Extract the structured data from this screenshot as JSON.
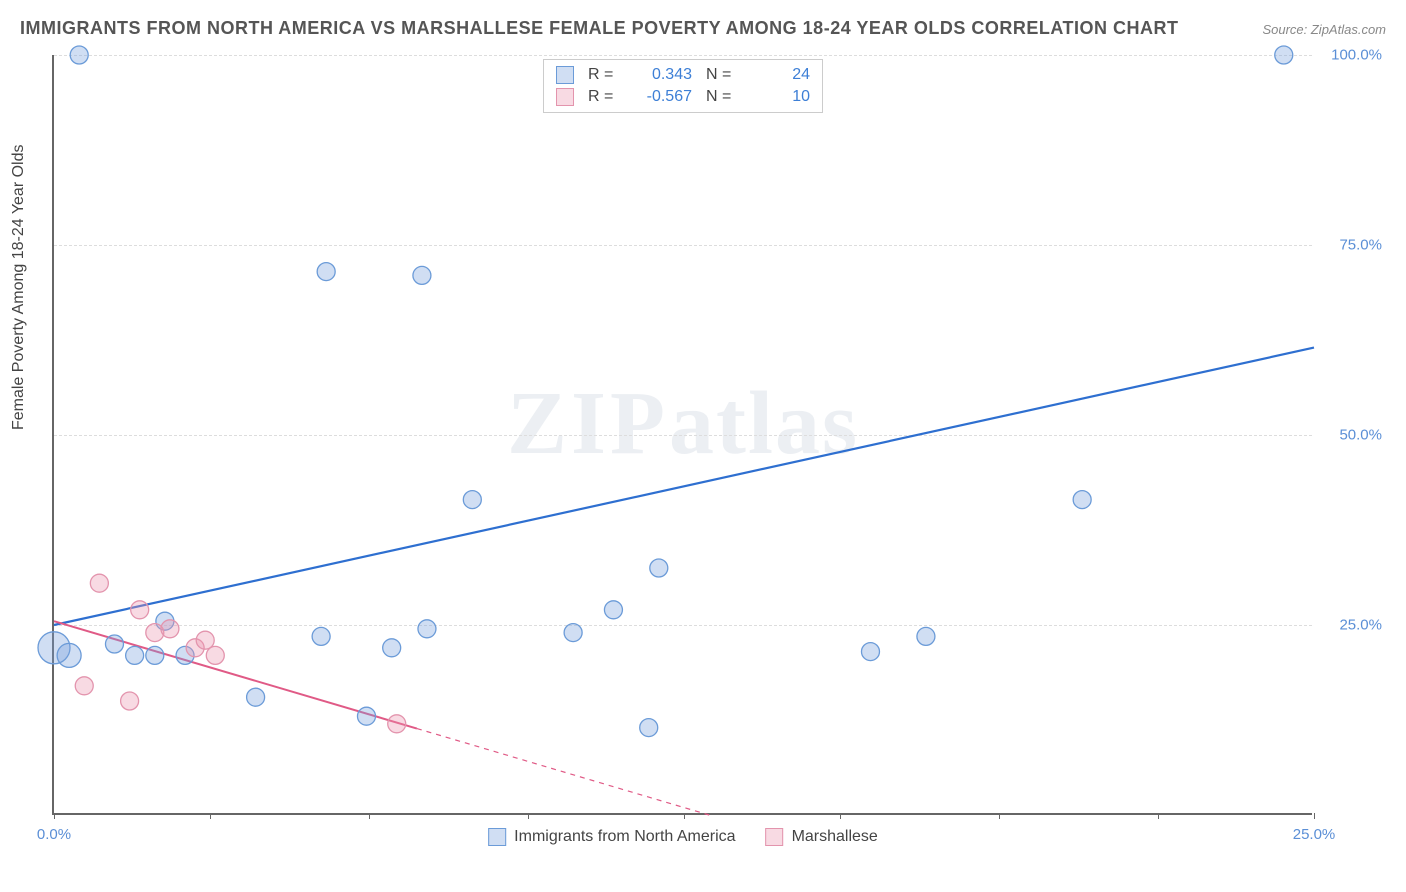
{
  "title": "IMMIGRANTS FROM NORTH AMERICA VS MARSHALLESE FEMALE POVERTY AMONG 18-24 YEAR OLDS CORRELATION CHART",
  "source": "Source: ZipAtlas.com",
  "ylabel": "Female Poverty Among 18-24 Year Olds",
  "watermark_zip": "ZIP",
  "watermark_atlas": "atlas",
  "chart": {
    "type": "scatter-with-regression",
    "xlim": [
      0,
      25
    ],
    "ylim": [
      0,
      100
    ],
    "xtick_positions": [
      0,
      3.1,
      6.25,
      9.4,
      12.5,
      15.6,
      18.75,
      21.9,
      25
    ],
    "xtick_labels_shown": {
      "0": "0.0%",
      "25": "25.0%"
    },
    "ytick_positions": [
      25,
      50,
      75,
      100
    ],
    "ytick_labels": {
      "25": "25.0%",
      "50": "50.0%",
      "75": "75.0%",
      "100": "100.0%"
    },
    "plot_bg": "#ffffff",
    "grid_color": "#dddddd",
    "axis_color": "#666666"
  },
  "series": [
    {
      "id": "immigrants",
      "legend_label": "Immigrants from North America",
      "color_fill": "rgba(120,160,220,0.35)",
      "color_stroke": "#6b9bd8",
      "line_color": "#2e6fd0",
      "line_width": 2.2,
      "R": "0.343",
      "N": "24",
      "points": [
        {
          "x": 0.0,
          "y": 22.0,
          "r": 16
        },
        {
          "x": 0.3,
          "y": 21.0,
          "r": 12
        },
        {
          "x": 0.5,
          "y": 100.0,
          "r": 9
        },
        {
          "x": 1.2,
          "y": 22.5,
          "r": 9
        },
        {
          "x": 1.6,
          "y": 21.0,
          "r": 9
        },
        {
          "x": 2.0,
          "y": 21.0,
          "r": 9
        },
        {
          "x": 2.2,
          "y": 25.5,
          "r": 9
        },
        {
          "x": 2.6,
          "y": 21.0,
          "r": 9
        },
        {
          "x": 4.0,
          "y": 15.5,
          "r": 9
        },
        {
          "x": 5.3,
          "y": 23.5,
          "r": 9
        },
        {
          "x": 5.4,
          "y": 71.5,
          "r": 9
        },
        {
          "x": 6.2,
          "y": 13.0,
          "r": 9
        },
        {
          "x": 6.7,
          "y": 22.0,
          "r": 9
        },
        {
          "x": 7.3,
          "y": 71.0,
          "r": 9
        },
        {
          "x": 7.4,
          "y": 24.5,
          "r": 9
        },
        {
          "x": 8.3,
          "y": 41.5,
          "r": 9
        },
        {
          "x": 10.3,
          "y": 24.0,
          "r": 9
        },
        {
          "x": 11.1,
          "y": 27.0,
          "r": 9
        },
        {
          "x": 11.8,
          "y": 11.5,
          "r": 9
        },
        {
          "x": 12.0,
          "y": 32.5,
          "r": 9
        },
        {
          "x": 16.2,
          "y": 21.5,
          "r": 9
        },
        {
          "x": 17.3,
          "y": 23.5,
          "r": 9
        },
        {
          "x": 20.4,
          "y": 41.5,
          "r": 9
        },
        {
          "x": 24.4,
          "y": 100.0,
          "r": 9
        }
      ],
      "trend": {
        "x1": 0,
        "y1": 25.0,
        "x2": 25,
        "y2": 61.5,
        "solid_until_x": 25
      }
    },
    {
      "id": "marshallese",
      "legend_label": "Marshallese",
      "color_fill": "rgba(235,150,175,0.35)",
      "color_stroke": "#e394ad",
      "line_color": "#e05a86",
      "line_width": 2,
      "R": "-0.567",
      "N": "10",
      "points": [
        {
          "x": 0.6,
          "y": 17.0,
          "r": 9
        },
        {
          "x": 0.9,
          "y": 30.5,
          "r": 9
        },
        {
          "x": 1.5,
          "y": 15.0,
          "r": 9
        },
        {
          "x": 1.7,
          "y": 27.0,
          "r": 9
        },
        {
          "x": 2.0,
          "y": 24.0,
          "r": 9
        },
        {
          "x": 2.3,
          "y": 24.5,
          "r": 9
        },
        {
          "x": 2.8,
          "y": 22.0,
          "r": 9
        },
        {
          "x": 3.0,
          "y": 23.0,
          "r": 9
        },
        {
          "x": 3.2,
          "y": 21.0,
          "r": 9
        },
        {
          "x": 6.8,
          "y": 12.0,
          "r": 9
        }
      ],
      "trend": {
        "x1": 0,
        "y1": 25.5,
        "x2": 13.0,
        "y2": 0,
        "solid_until_x": 7.2
      }
    }
  ],
  "legend_top": {
    "R_label": "R  =",
    "N_label": "N  ="
  }
}
